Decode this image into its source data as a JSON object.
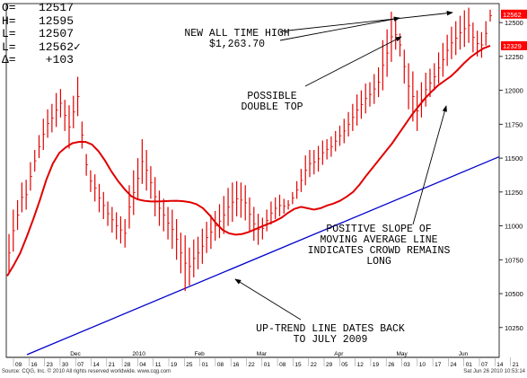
{
  "header": {
    "open_label": "O=",
    "open_value": "12517",
    "high_label": "H=",
    "high_value": "12595",
    "low_label": "L=",
    "low_value": "12507",
    "last_label": "L=",
    "last_value": "12562",
    "last_mark": "✓",
    "change_label": "Δ=",
    "change_value": "+103"
  },
  "footer": {
    "source": "Source: CQG, Inc. © 2010 All rights reserved worldwide. www.cqg.com",
    "timestamp": "Sat Jun 26 2010 10:53:14"
  },
  "chart_data": {
    "type": "ohlc",
    "y_ticks": [
      10250,
      10500,
      10750,
      11000,
      11250,
      11500,
      11750,
      12000,
      12250,
      12500
    ],
    "ylim": [
      10030,
      12640
    ],
    "price_labels": [
      {
        "text": "12562",
        "value": 12562,
        "color": "#ff0000"
      },
      {
        "text": "12329",
        "value": 12329,
        "color": "#ff0000"
      }
    ],
    "date_ticks": [
      "09",
      "16",
      "23",
      "30",
      "07",
      "14",
      "21",
      "28",
      "04",
      "11",
      "19",
      "25",
      "01",
      "08",
      "16",
      "22",
      "01",
      "08",
      "15",
      "22",
      "29",
      "05",
      "12",
      "19",
      "26",
      "03",
      "10",
      "17",
      "24",
      "01",
      "07",
      "14",
      "21"
    ],
    "month_labels": [
      {
        "text": "Dec",
        "tick": 4
      },
      {
        "text": "2010",
        "tick": 8
      },
      {
        "text": "Feb",
        "tick": 12
      },
      {
        "text": "Mar",
        "tick": 16
      },
      {
        "text": "Apr",
        "tick": 21
      },
      {
        "text": "May",
        "tick": 25
      },
      {
        "text": "Jun",
        "tick": 29
      }
    ],
    "bars": [
      [
        10940,
        10660
      ],
      [
        11120,
        10810
      ],
      [
        11190,
        10970
      ],
      [
        11320,
        11100
      ],
      [
        11340,
        11120
      ],
      [
        11470,
        11260
      ],
      [
        11560,
        11400
      ],
      [
        11670,
        11500
      ],
      [
        11790,
        11560
      ],
      [
        11860,
        11650
      ],
      [
        11900,
        11690
      ],
      [
        11980,
        11730
      ],
      [
        12010,
        11800
      ],
      [
        11930,
        11700
      ],
      [
        11890,
        11570
      ],
      [
        11960,
        11720
      ],
      [
        12100,
        11810
      ],
      [
        11770,
        11570
      ],
      [
        11530,
        11370
      ],
      [
        11410,
        11250
      ],
      [
        11380,
        11180
      ],
      [
        11310,
        11100
      ],
      [
        11250,
        11050
      ],
      [
        11180,
        11000
      ],
      [
        11140,
        10950
      ],
      [
        11100,
        10900
      ],
      [
        11070,
        10870
      ],
      [
        11050,
        10840
      ],
      [
        11300,
        10980
      ],
      [
        11410,
        11080
      ],
      [
        11500,
        11200
      ],
      [
        11640,
        11310
      ],
      [
        11560,
        11260
      ],
      [
        11440,
        11200
      ],
      [
        11360,
        11070
      ],
      [
        11260,
        11000
      ],
      [
        11200,
        10960
      ],
      [
        11140,
        10900
      ],
      [
        11120,
        10830
      ],
      [
        11050,
        10750
      ],
      [
        10950,
        10650
      ],
      [
        10930,
        10520
      ],
      [
        10840,
        10560
      ],
      [
        10900,
        10620
      ],
      [
        10920,
        10680
      ],
      [
        10980,
        10720
      ],
      [
        11030,
        10800
      ],
      [
        11080,
        10830
      ],
      [
        11110,
        10890
      ],
      [
        11160,
        10910
      ],
      [
        11220,
        10940
      ],
      [
        11280,
        11000
      ],
      [
        11320,
        11030
      ],
      [
        11330,
        11070
      ],
      [
        11320,
        11060
      ],
      [
        11300,
        11040
      ],
      [
        11210,
        10960
      ],
      [
        11140,
        10890
      ],
      [
        11090,
        10860
      ],
      [
        11060,
        10900
      ],
      [
        11120,
        10960
      ],
      [
        11180,
        11010
      ],
      [
        11210,
        11050
      ],
      [
        11230,
        11070
      ],
      [
        11200,
        11090
      ],
      [
        11190,
        11120
      ],
      [
        11250,
        11160
      ],
      [
        11330,
        11200
      ],
      [
        11420,
        11250
      ],
      [
        11520,
        11300
      ],
      [
        11560,
        11360
      ],
      [
        11560,
        11380
      ],
      [
        11590,
        11400
      ],
      [
        11630,
        11450
      ],
      [
        11640,
        11490
      ],
      [
        11660,
        11510
      ],
      [
        11700,
        11550
      ],
      [
        11740,
        11590
      ],
      [
        11790,
        11610
      ],
      [
        11840,
        11660
      ],
      [
        11900,
        11700
      ],
      [
        11970,
        11740
      ],
      [
        12000,
        11790
      ],
      [
        12050,
        11830
      ],
      [
        12060,
        11880
      ],
      [
        12120,
        11900
      ],
      [
        12170,
        11950
      ],
      [
        12370,
        12000
      ],
      [
        12450,
        12100
      ],
      [
        12580,
        12210
      ],
      [
        12520,
        12300
      ],
      [
        12420,
        12250
      ],
      [
        12300,
        12050
      ],
      [
        12200,
        11860
      ],
      [
        12140,
        11770
      ],
      [
        12000,
        11700
      ],
      [
        12060,
        11800
      ],
      [
        12130,
        11880
      ],
      [
        12160,
        11950
      ],
      [
        12200,
        12000
      ],
      [
        12280,
        12050
      ],
      [
        12350,
        12100
      ],
      [
        12410,
        12180
      ],
      [
        12470,
        12230
      ],
      [
        12510,
        12260
      ],
      [
        12550,
        12300
      ],
      [
        12590,
        12320
      ],
      [
        12610,
        12350
      ],
      [
        12500,
        12280
      ],
      [
        12440,
        12250
      ],
      [
        12430,
        12240
      ],
      [
        12510,
        12330
      ],
      [
        12595,
        12507
      ]
    ],
    "moving_average": [
      10630,
      10710,
      10800,
      10920,
      11050,
      11190,
      11340,
      11460,
      11540,
      11580,
      11610,
      11620,
      11620,
      11600,
      11550,
      11480,
      11400,
      11330,
      11270,
      11220,
      11195,
      11185,
      11180,
      11180,
      11182,
      11184,
      11185,
      11182,
      11175,
      11160,
      11130,
      11080,
      11020,
      10970,
      10945,
      10935,
      10940,
      10955,
      10975,
      10995,
      11015,
      11035,
      11060,
      11095,
      11125,
      11140,
      11130,
      11120,
      11130,
      11150,
      11165,
      11185,
      11215,
      11250,
      11305,
      11370,
      11430,
      11490,
      11550,
      11610,
      11680,
      11750,
      11820,
      11880,
      11940,
      11990,
      12035,
      12070,
      12105,
      12150,
      12200,
      12245,
      12280,
      12310,
      12329
    ],
    "trend_line": {
      "label": "UP-TREND LINE",
      "from": 10050,
      "to": 11510
    },
    "annotations": [
      {
        "text": "NEW ALL TIME HIGH\n$1,263.70"
      },
      {
        "text": "POSSIBLE\nDOUBLE TOP"
      },
      {
        "text": "POSITIVE SLOPE OF\nMOVING AVERAGE LINE\nINDICATES CROWD REMAINS\nLONG"
      },
      {
        "text": "UP-TREND LINE DATES BACK\nTO JULY 2009"
      }
    ]
  }
}
